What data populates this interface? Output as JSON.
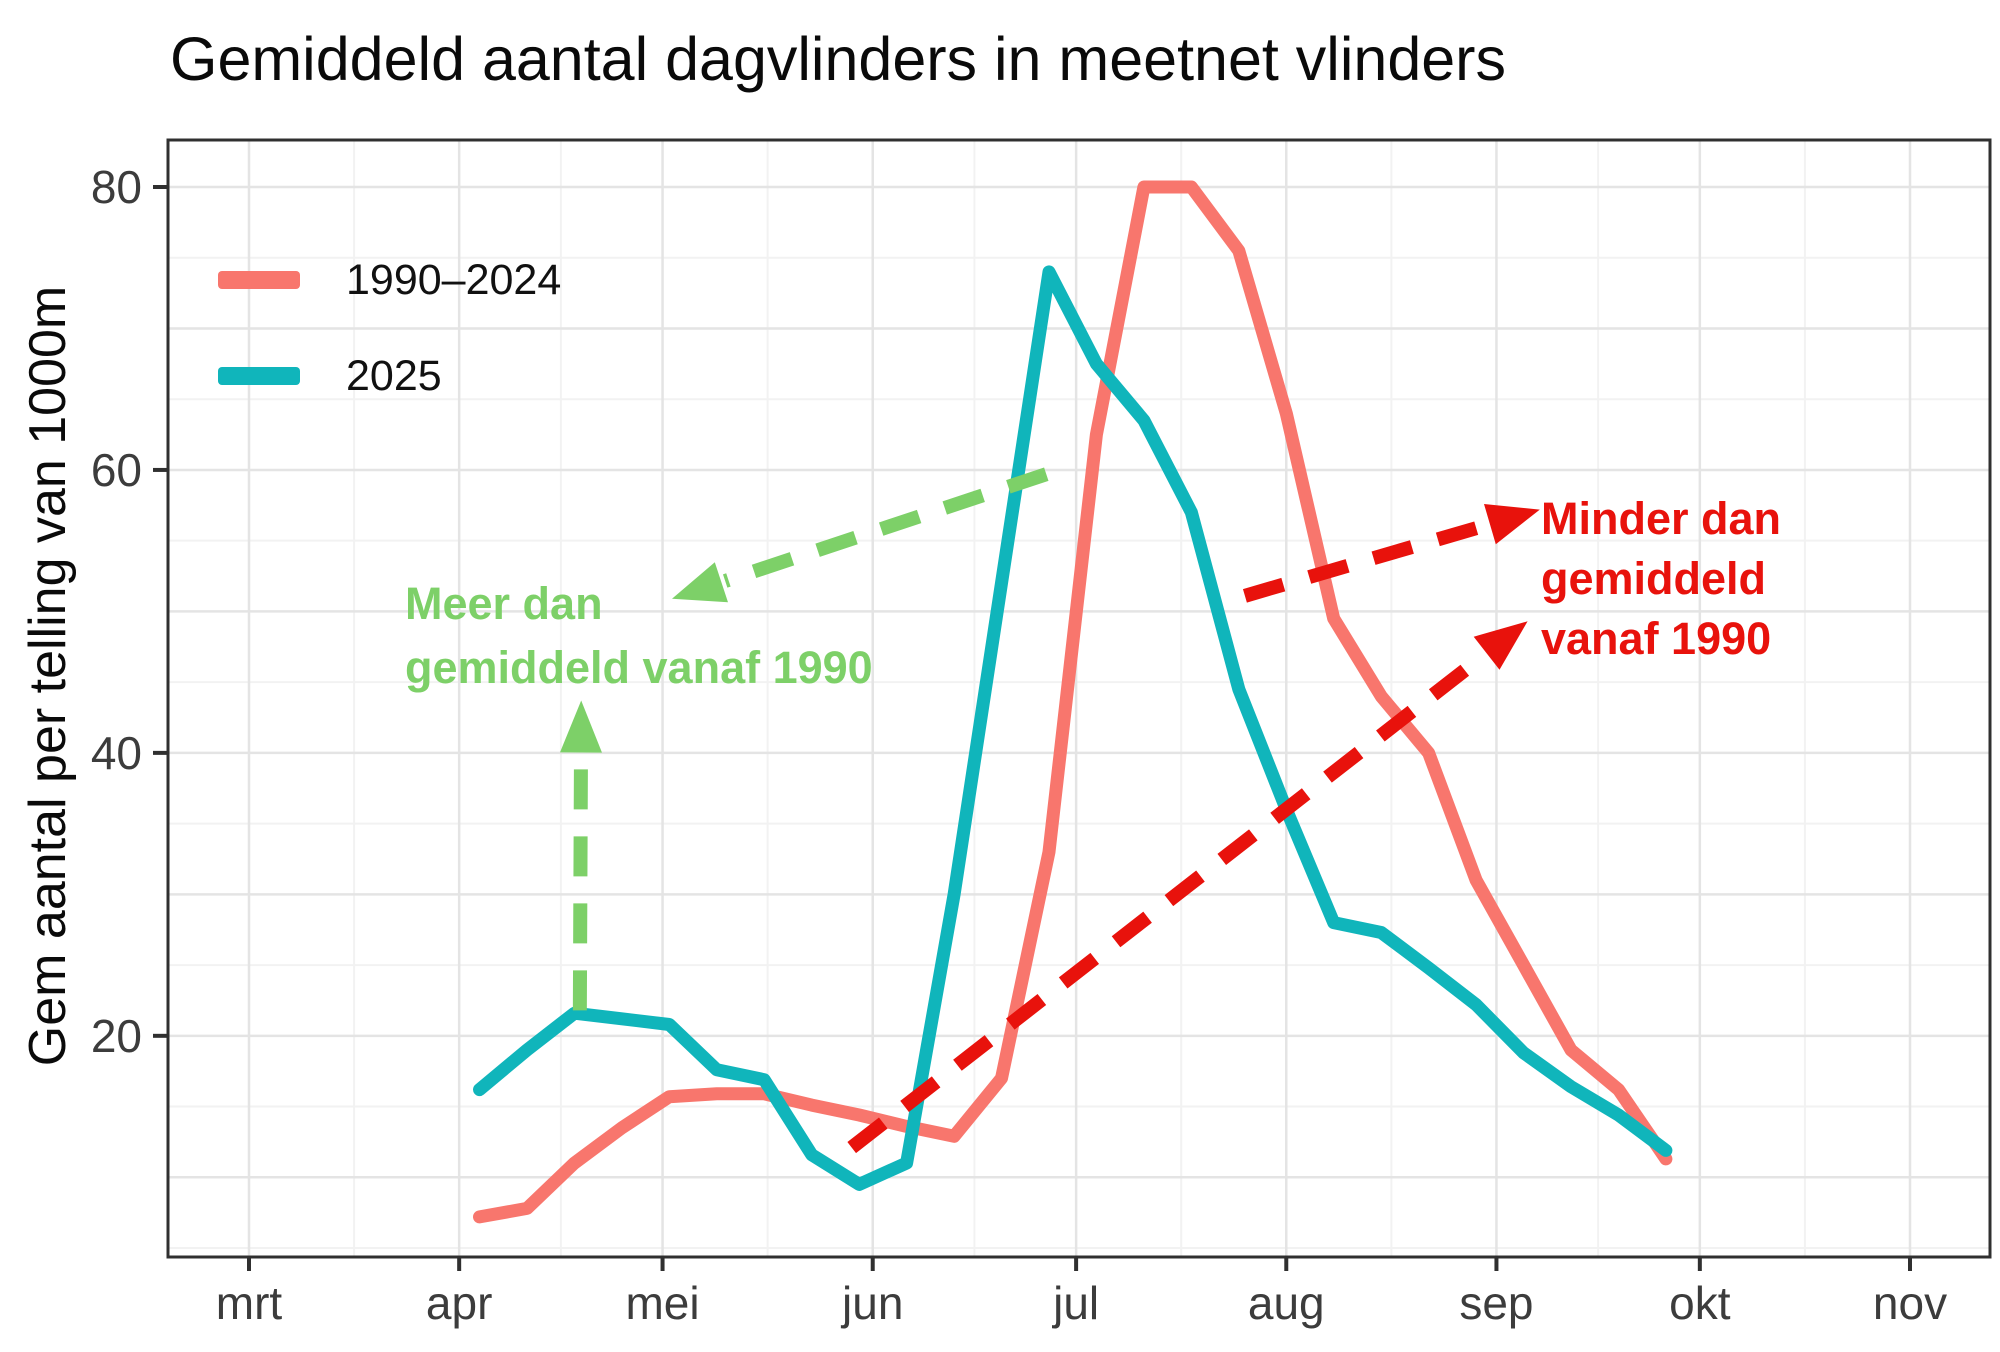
{
  "title": "Gemiddeld aantal dagvlinders in meetnet vlinders",
  "chart_data": {
    "type": "line",
    "title": "Gemiddeld aantal dagvlinders in meetnet vlinders",
    "xlabel": "",
    "ylabel": "Gem aantal per telling van 1000m",
    "x_tick_labels": [
      "mrt",
      "apr",
      "mei",
      "jun",
      "jul",
      "aug",
      "sep",
      "okt",
      "nov"
    ],
    "x_tick_days": [
      0,
      31,
      61,
      92,
      122,
      153,
      184,
      214,
      245
    ],
    "y_tick_values": [
      20,
      40,
      60,
      80
    ],
    "ylim": [
      4.4,
      83.3
    ],
    "x_unit": "days since 1 March, weekly counts",
    "grid": {
      "y_major_step": 10,
      "y_minor_step": 5,
      "x_major": "month start",
      "x_minor": "mid-month"
    },
    "legend_position": "top-left-inside",
    "series": [
      {
        "name": "1990–2024",
        "color": "#F8766D",
        "points": [
          [
            34,
            7.2
          ],
          [
            41,
            7.8
          ],
          [
            48,
            11
          ],
          [
            55,
            13.5
          ],
          [
            62,
            15.7
          ],
          [
            69,
            15.9
          ],
          [
            76,
            15.9
          ],
          [
            83,
            15.1
          ],
          [
            90,
            14.4
          ],
          [
            97,
            13.6
          ],
          [
            104,
            12.9
          ],
          [
            111,
            17
          ],
          [
            118,
            33
          ],
          [
            125,
            62.5
          ],
          [
            132,
            80
          ],
          [
            139,
            80
          ],
          [
            146,
            75.5
          ],
          [
            153,
            64
          ],
          [
            160,
            49.5
          ],
          [
            167,
            44
          ],
          [
            174,
            40
          ],
          [
            181,
            31
          ],
          [
            188,
            25
          ],
          [
            195,
            19
          ],
          [
            202,
            16.2
          ],
          [
            209,
            11.3
          ]
        ]
      },
      {
        "name": "2025",
        "color": "#10B5BB",
        "points": [
          [
            34,
            16.2
          ],
          [
            41,
            19
          ],
          [
            48,
            21.6
          ],
          [
            55,
            21.2
          ],
          [
            62,
            20.8
          ],
          [
            69,
            17.6
          ],
          [
            76,
            16.9
          ],
          [
            83,
            11.6
          ],
          [
            90,
            9.5
          ],
          [
            97,
            11
          ],
          [
            104,
            30
          ],
          [
            111,
            52
          ],
          [
            118,
            74
          ],
          [
            125,
            67.5
          ],
          [
            132,
            63.5
          ],
          [
            139,
            57
          ],
          [
            146,
            44.5
          ],
          [
            153,
            36
          ],
          [
            160,
            28
          ],
          [
            167,
            27.3
          ],
          [
            174,
            24.8
          ],
          [
            181,
            22.2
          ],
          [
            188,
            18.8
          ],
          [
            195,
            16.4
          ],
          [
            202,
            14.4
          ],
          [
            209,
            11.9
          ]
        ]
      }
    ],
    "annotations": [
      {
        "id": "meer-dan-gemiddeld",
        "color": "#7DD068",
        "text_lines": [
          "Meer dan",
          "gemiddeld vanaf 1990"
        ],
        "arrows": [
          {
            "from_day": 48.8,
            "from_value": 21.8,
            "to_day": 49.0,
            "to_value": 43.7
          },
          {
            "from_day": 117.6,
            "from_value": 59.7,
            "to_day": 62.4,
            "to_value": 50.9
          }
        ]
      },
      {
        "id": "minder-dan-gemiddeld",
        "color": "#E8120C",
        "text_lines": [
          "Minder dan",
          "gemiddeld",
          "vanaf 1990"
        ],
        "arrows": [
          {
            "from_day": 146.9,
            "from_value": 51.1,
            "to_day": 190.4,
            "to_value": 57.2
          },
          {
            "from_day": 88.9,
            "from_value": 12.1,
            "to_day": 188.6,
            "to_value": 49.3
          }
        ]
      }
    ]
  },
  "style": {
    "grid_major_color": "#e4e4e4",
    "grid_minor_color": "#f2f2f2",
    "border_color": "#303030",
    "tick_color": "#303030",
    "tick_label_color": "#3c3c3c"
  }
}
